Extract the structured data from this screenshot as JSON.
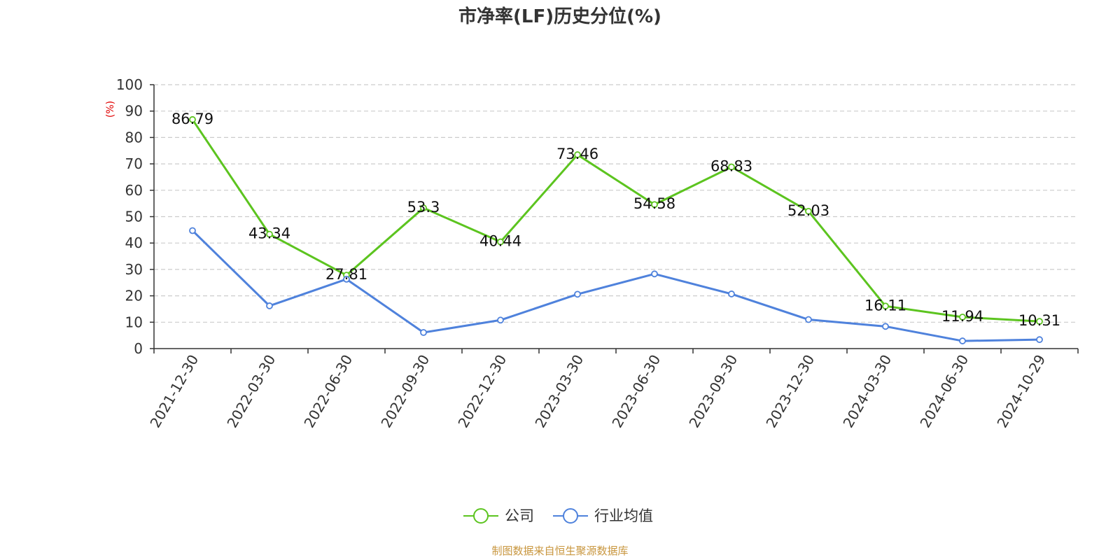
{
  "colors": {
    "company": "#5cc41f",
    "industry": "#4f82dc",
    "grid": "#cccccc",
    "axis": "#333333",
    "source": "#c8963e",
    "unit": "#e00000"
  },
  "chart_data": {
    "type": "line",
    "title": "市净率(LF)历史分位(%)",
    "ylabel": "(%)",
    "ylim": [
      0,
      100
    ],
    "yticks": [
      "0",
      "10",
      "20",
      "30",
      "40",
      "50",
      "60",
      "70",
      "80",
      "90",
      "100"
    ],
    "grid": true,
    "legend_position": "bottom",
    "categories": [
      "2021-12-30",
      "2022-03-30",
      "2022-06-30",
      "2022-09-30",
      "2022-12-30",
      "2023-03-30",
      "2023-06-30",
      "2023-09-30",
      "2023-12-30",
      "2024-03-30",
      "2024-06-30",
      "2024-10-29"
    ],
    "series": [
      {
        "name": "公司",
        "color_key": "company",
        "values": [
          86.79,
          43.34,
          27.81,
          53.3,
          40.44,
          73.46,
          54.58,
          68.83,
          52.03,
          16.11,
          11.94,
          10.31
        ],
        "labels": [
          "86.79",
          "43.34",
          "27.81",
          "53.3",
          "40.44",
          "73.46",
          "54.58",
          "68.83",
          "52.03",
          "16.11",
          "11.94",
          "10.31"
        ]
      },
      {
        "name": "行业均值",
        "color_key": "industry",
        "values": [
          44.7,
          16.2,
          26.3,
          6.1,
          10.8,
          20.6,
          28.3,
          20.7,
          11.0,
          8.4,
          2.9,
          3.4
        ]
      }
    ]
  },
  "source_text": "制图数据来自恒生聚源数据库"
}
